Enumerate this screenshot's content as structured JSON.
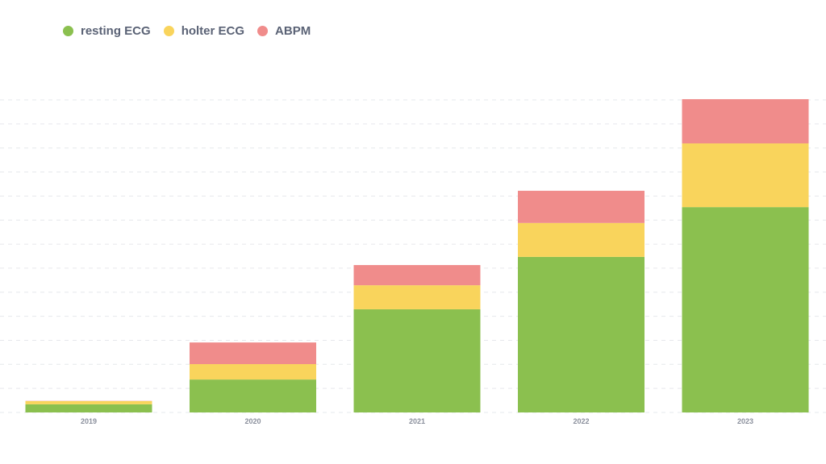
{
  "chart_data": {
    "type": "bar",
    "stacked": true,
    "title": "",
    "xlabel": "",
    "ylabel": "",
    "categories": [
      "2019",
      "2020",
      "2021",
      "2022",
      "2023"
    ],
    "series": [
      {
        "name": "resting ECG",
        "color": "#8bc04f",
        "values": [
          3.4,
          13.7,
          42.9,
          64.7,
          85.4
        ]
      },
      {
        "name": "holter ECG",
        "color": "#f9d45c",
        "values": [
          1.3,
          6.4,
          10.0,
          14.1,
          26.5
        ]
      },
      {
        "name": "ABPM",
        "color": "#f08c8b",
        "values": [
          0.1,
          9.0,
          8.4,
          13.4,
          18.4
        ]
      }
    ],
    "ylim": [
      0,
      130
    ],
    "ytick_step": 10,
    "grid": true,
    "y_tick_labels_shown": false,
    "legend_position": "top-left"
  }
}
